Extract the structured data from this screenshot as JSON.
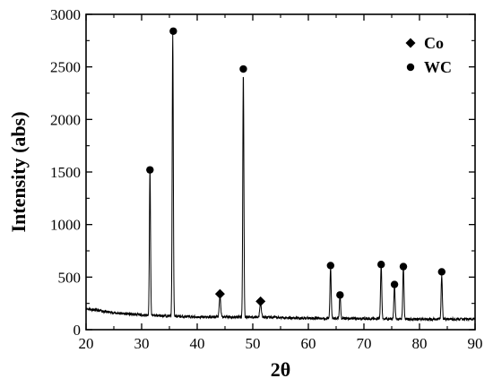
{
  "chart_data": {
    "type": "line",
    "xlabel": "2θ",
    "ylabel": "Intensity (abs)",
    "xlim": [
      20,
      90
    ],
    "ylim": [
      0,
      3000
    ],
    "xticks": [
      20,
      30,
      40,
      50,
      60,
      70,
      80,
      90
    ],
    "yticks": [
      0,
      500,
      1000,
      1500,
      2000,
      2500,
      3000
    ],
    "grid": false,
    "legend": {
      "placement": "top-right",
      "entries": [
        {
          "marker": "diamond",
          "label": "Co"
        },
        {
          "marker": "circle",
          "label": "WC"
        }
      ]
    },
    "series": [
      {
        "color": "#000000",
        "baseline": [
          [
            20,
            200
          ],
          [
            25,
            160
          ],
          [
            30,
            140
          ],
          [
            40,
            120
          ],
          [
            50,
            120
          ],
          [
            60,
            110
          ],
          [
            70,
            105
          ],
          [
            80,
            100
          ],
          [
            90,
            100
          ]
        ],
        "peaks": [
          {
            "x": 31.5,
            "y": 1380,
            "w": 0.14
          },
          {
            "x": 35.6,
            "y": 2680,
            "w": 0.14
          },
          {
            "x": 44.1,
            "y": 200,
            "w": 0.18
          },
          {
            "x": 48.3,
            "y": 2330,
            "w": 0.14
          },
          {
            "x": 51.4,
            "y": 130,
            "w": 0.2
          },
          {
            "x": 64.0,
            "y": 480,
            "w": 0.15
          },
          {
            "x": 65.7,
            "y": 230,
            "w": 0.15
          },
          {
            "x": 73.1,
            "y": 520,
            "w": 0.15
          },
          {
            "x": 75.5,
            "y": 330,
            "w": 0.15
          },
          {
            "x": 77.1,
            "y": 510,
            "w": 0.15
          },
          {
            "x": 84.0,
            "y": 420,
            "w": 0.15
          }
        ]
      }
    ],
    "annotations": [
      {
        "marker": "circle",
        "phase": "WC",
        "x": 31.5,
        "y": 1520
      },
      {
        "marker": "circle",
        "phase": "WC",
        "x": 35.7,
        "y": 2840
      },
      {
        "marker": "diamond",
        "phase": "Co",
        "x": 44.1,
        "y": 340
      },
      {
        "marker": "circle",
        "phase": "WC",
        "x": 48.3,
        "y": 2480
      },
      {
        "marker": "diamond",
        "phase": "Co",
        "x": 51.4,
        "y": 270
      },
      {
        "marker": "circle",
        "phase": "WC",
        "x": 64.0,
        "y": 610
      },
      {
        "marker": "circle",
        "phase": "WC",
        "x": 65.7,
        "y": 330
      },
      {
        "marker": "circle",
        "phase": "WC",
        "x": 73.1,
        "y": 620
      },
      {
        "marker": "circle",
        "phase": "WC",
        "x": 75.5,
        "y": 430
      },
      {
        "marker": "circle",
        "phase": "WC",
        "x": 77.1,
        "y": 600
      },
      {
        "marker": "circle",
        "phase": "WC",
        "x": 84.0,
        "y": 550
      }
    ]
  }
}
